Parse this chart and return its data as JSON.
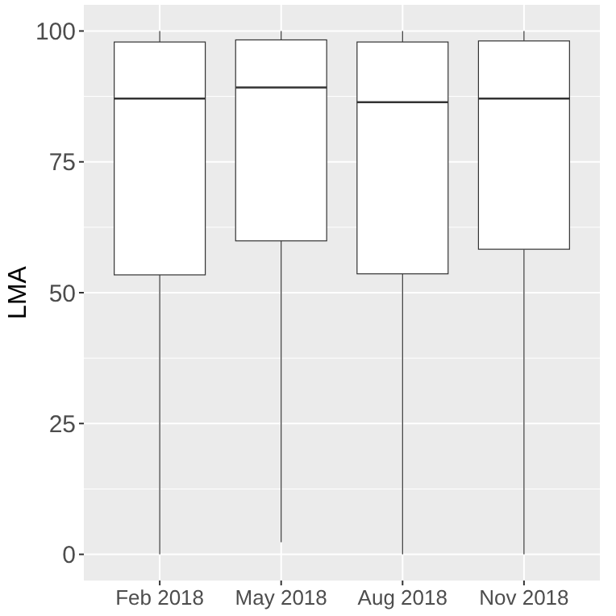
{
  "chart_data": {
    "type": "box",
    "ylabel": "LMA",
    "categories": [
      "Feb 2018",
      "May 2018",
      "Aug 2018",
      "Nov 2018"
    ],
    "boxes": [
      {
        "low": 0,
        "q1": 53.4,
        "median": 87.1,
        "q3": 97.9,
        "high": 100
      },
      {
        "low": 2.3,
        "q1": 59.9,
        "median": 89.2,
        "q3": 98.3,
        "high": 100
      },
      {
        "low": 0,
        "q1": 53.6,
        "median": 86.4,
        "q3": 97.9,
        "high": 100
      },
      {
        "low": 0,
        "q1": 58.3,
        "median": 87.1,
        "q3": 98.1,
        "high": 100
      }
    ],
    "ylim": [
      -5,
      105
    ],
    "yticks": [
      0,
      25,
      50,
      75,
      100
    ],
    "grid": true,
    "color": "#ffffff"
  }
}
